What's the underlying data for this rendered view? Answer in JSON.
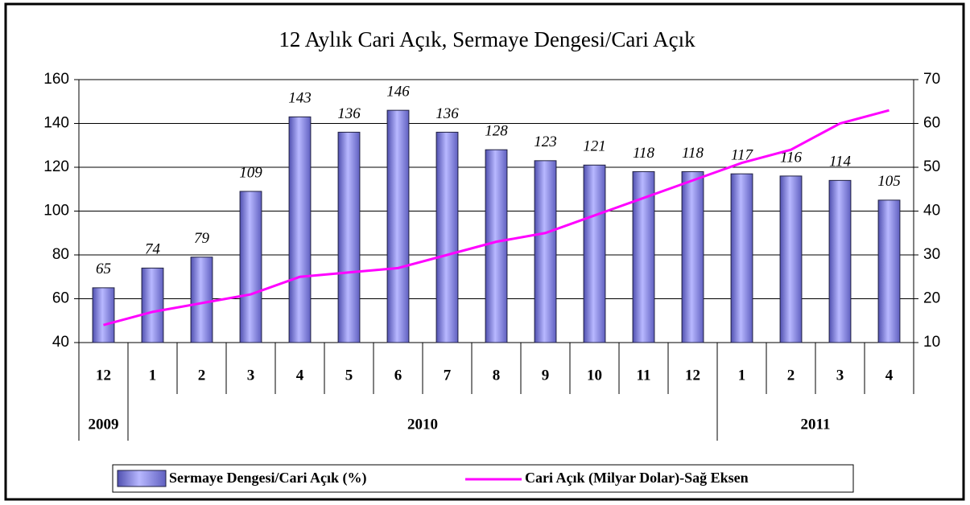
{
  "chart_data": {
    "type": "bar_line",
    "title": "12 Aylık Cari Açık, Sermaye Dengesi/Cari Açık",
    "categories": [
      "12",
      "1",
      "2",
      "3",
      "4",
      "5",
      "6",
      "7",
      "8",
      "9",
      "10",
      "11",
      "12",
      "1",
      "2",
      "3",
      "4"
    ],
    "x_groups": [
      {
        "label": "2009",
        "count": 1
      },
      {
        "label": "2010",
        "count": 12
      },
      {
        "label": "2011",
        "count": 4
      }
    ],
    "series": [
      {
        "name": "Sermaye Dengesi/Cari Açık (%)",
        "type": "bar",
        "color": "#8c8ce6",
        "values": [
          65,
          74,
          79,
          109,
          143,
          136,
          146,
          136,
          128,
          123,
          121,
          118,
          118,
          117,
          116,
          114,
          105
        ]
      },
      {
        "name": "Cari Açık (Milyar Dolar)-Sağ Eksen",
        "type": "line",
        "axis": "y2",
        "color": "#ff00ff",
        "values": [
          14,
          17,
          19,
          21,
          25,
          26,
          27,
          30,
          33,
          35,
          39,
          43,
          47,
          51,
          54,
          60,
          63
        ]
      }
    ],
    "ylim": [
      40,
      160
    ],
    "yticks": [
      40,
      60,
      80,
      100,
      120,
      140,
      160
    ],
    "y2lim": [
      10,
      70
    ],
    "y2ticks": [
      10,
      20,
      30,
      40,
      50,
      60,
      70
    ],
    "grid": true,
    "legend": "bottom"
  }
}
